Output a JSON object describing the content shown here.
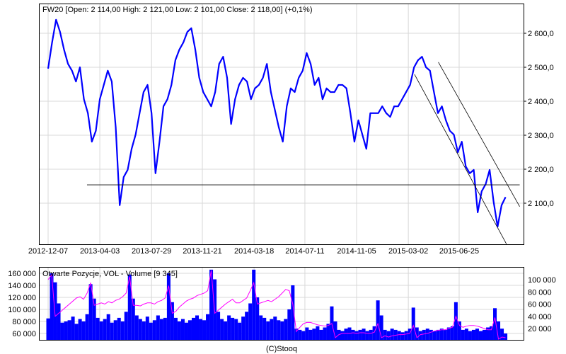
{
  "chart_data": [
    {
      "type": "line",
      "title": "FW20 [Open: 2 114,00  High: 2 121,00  Low: 2 101,00  Close: 2 118,00] (+0,1%)",
      "x_ticks": [
        "2012-12-07",
        "2013-04-03",
        "2013-07-29",
        "2013-11-21",
        "2014-03-18",
        "2014-07-11",
        "2014-11-05",
        "2015-03-02",
        "2015-06-25"
      ],
      "y_ticks": [
        2100,
        2200,
        2300,
        2400,
        2500,
        2600
      ],
      "y_tick_labels": [
        "2 100,0",
        "2 200,0",
        "2 300,0",
        "2 400,0",
        "2 500,0",
        "2 600,0"
      ],
      "ylim": [
        2000,
        2680
      ],
      "date_range": [
        "2012-12-07",
        "2015-10-08"
      ],
      "grid": true,
      "series": [
        {
          "color": "#0000ff",
          "values": [
            2496,
            2573,
            2640,
            2604,
            2552,
            2510,
            2490,
            2458,
            2500,
            2406,
            2365,
            2281,
            2313,
            2406,
            2448,
            2490,
            2458,
            2323,
            2094,
            2177,
            2198,
            2260,
            2302,
            2365,
            2427,
            2448,
            2365,
            2188,
            2281,
            2385,
            2406,
            2448,
            2521,
            2552,
            2573,
            2604,
            2615,
            2552,
            2469,
            2427,
            2406,
            2385,
            2427,
            2510,
            2531,
            2469,
            2333,
            2406,
            2448,
            2469,
            2458,
            2406,
            2438,
            2448,
            2469,
            2510,
            2427,
            2375,
            2323,
            2281,
            2385,
            2438,
            2427,
            2469,
            2490,
            2542,
            2510,
            2448,
            2469,
            2406,
            2438,
            2427,
            2427,
            2448,
            2448,
            2438,
            2365,
            2281,
            2344,
            2302,
            2260,
            2365,
            2365,
            2365,
            2385,
            2365,
            2354,
            2385,
            2385,
            2406,
            2427,
            2448,
            2500,
            2521,
            2531,
            2500,
            2490,
            2427,
            2365,
            2385,
            2344,
            2313,
            2302,
            2250,
            2281,
            2208,
            2188,
            2198,
            2073,
            2135,
            2156,
            2198,
            2104,
            2031,
            2094,
            2118
          ]
        }
      ],
      "annotations": [
        {
          "type": "horizontal-line",
          "color": "#000000",
          "from": "2013-03-05",
          "to": "2015-11-09",
          "value": 2154
        },
        {
          "type": "trend-line",
          "color": "#000000",
          "from": [
            "2015-05-09",
            2515
          ],
          "to": [
            "2015-11-09",
            2090
          ]
        },
        {
          "type": "trend-line",
          "color": "#000000",
          "from": [
            "2015-03-16",
            2479
          ],
          "to": [
            "2015-10-10",
            1980
          ]
        }
      ]
    },
    {
      "type": "bar",
      "title": "Otwarte Pozycje, VOL - Volume [9 345]",
      "date_range": [
        "2012-12-07",
        "2015-10-08"
      ],
      "left_y_ticks": [
        60000,
        80000,
        100000,
        120000,
        140000,
        160000
      ],
      "left_y_tick_labels": [
        "60 000",
        "80 000",
        "100 000",
        "120 000",
        "140 000",
        "160 000"
      ],
      "right_y_ticks": [
        20000,
        40000,
        60000,
        80000,
        100000
      ],
      "right_y_tick_labels": [
        "20 000",
        "40 000",
        "60 000",
        "80 000",
        "100 000"
      ],
      "grid": true,
      "series": [
        {
          "axis": "left",
          "kind": "bar",
          "color": "#0000ff",
          "values_thousands": [
            85,
            160,
            145,
            110,
            78,
            80,
            82,
            88,
            76,
            84,
            80,
            92,
            142,
            118,
            86,
            80,
            84,
            92,
            78,
            82,
            86,
            80,
            96,
            158,
            118,
            90,
            84,
            80,
            88,
            78,
            82,
            90,
            84,
            86,
            160,
            112,
            86,
            80,
            84,
            78,
            82,
            86,
            90,
            84,
            82,
            92,
            166,
            150,
            96,
            84,
            80,
            90,
            86,
            84,
            78,
            88,
            96,
            110,
            166,
            120,
            90,
            86,
            80,
            84,
            88,
            82,
            80,
            84,
            100,
            140,
            68,
            66,
            64,
            70,
            66,
            68,
            72,
            66,
            70,
            76,
            105,
            80,
            66,
            64,
            68,
            70,
            66,
            64,
            66,
            68,
            64,
            66,
            72,
            115,
            90,
            66,
            64,
            68,
            66,
            64,
            62,
            64,
            68,
            103,
            70,
            64,
            66,
            68,
            66,
            64,
            66,
            68,
            66,
            70,
            72,
            112,
            80,
            66,
            68,
            64,
            66,
            68,
            64,
            66,
            70,
            72,
            102,
            80,
            68,
            60
          ]
        },
        {
          "axis": "right",
          "kind": "line",
          "color": "#ff00ff",
          "values_thousands": [
            100,
            108,
            40,
            45,
            50,
            55,
            60,
            65,
            70,
            72,
            68,
            78,
            95,
            58,
            60,
            62,
            60,
            64,
            62,
            66,
            68,
            72,
            78,
            105,
            58,
            58,
            57,
            60,
            62,
            62,
            60,
            64,
            66,
            70,
            90,
            45,
            48,
            55,
            60,
            65,
            68,
            70,
            74,
            76,
            78,
            82,
            115,
            45,
            50,
            55,
            60,
            64,
            68,
            62,
            62,
            66,
            70,
            82,
            95,
            60,
            62,
            64,
            66,
            64,
            68,
            72,
            78,
            84,
            82,
            60,
            15,
            22,
            28,
            30,
            30,
            28,
            26,
            25,
            24,
            25,
            28,
            5,
            10,
            12,
            12,
            12,
            13,
            12,
            13,
            13,
            12,
            12,
            14,
            28,
            5,
            8,
            6,
            8,
            9,
            10,
            10,
            11,
            12,
            25,
            5,
            10,
            11,
            12,
            14,
            16,
            17,
            18,
            18,
            20,
            22,
            40,
            25,
            22,
            24,
            25,
            25,
            24,
            22,
            20,
            18,
            18,
            38,
            2,
            6,
            5
          ]
        }
      ]
    }
  ],
  "footer": {
    "copyright": "(C)Stooq"
  }
}
